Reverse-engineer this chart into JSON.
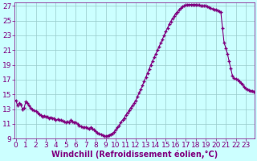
{
  "x": [
    0,
    0.17,
    0.33,
    0.5,
    0.67,
    0.83,
    1.0,
    1.17,
    1.33,
    1.5,
    1.67,
    1.83,
    2.0,
    2.17,
    2.33,
    2.5,
    2.67,
    2.83,
    3.0,
    3.17,
    3.33,
    3.5,
    3.67,
    3.83,
    4.0,
    4.17,
    4.33,
    4.5,
    4.67,
    4.83,
    5.0,
    5.17,
    5.33,
    5.5,
    5.67,
    5.83,
    6.0,
    6.17,
    6.33,
    6.5,
    6.67,
    6.83,
    7.0,
    7.17,
    7.33,
    7.5,
    7.67,
    7.83,
    8.0,
    8.17,
    8.33,
    8.5,
    8.67,
    8.83,
    9.0,
    9.17,
    9.33,
    9.5,
    9.67,
    9.83,
    10.0,
    10.17,
    10.33,
    10.5,
    10.67,
    10.83,
    11.0,
    11.17,
    11.33,
    11.5,
    11.67,
    11.83,
    12.0,
    12.17,
    12.33,
    12.5,
    12.67,
    12.83,
    13.0,
    13.17,
    13.33,
    13.5,
    13.67,
    13.83,
    14.0,
    14.17,
    14.33,
    14.5,
    14.67,
    14.83,
    15.0,
    15.17,
    15.33,
    15.5,
    15.67,
    15.83,
    16.0,
    16.17,
    16.33,
    16.5,
    16.67,
    16.83,
    17.0,
    17.17,
    17.33,
    17.5,
    17.67,
    17.83,
    18.0,
    18.17,
    18.33,
    18.5,
    18.67,
    18.83,
    19.0,
    19.17,
    19.33,
    19.5,
    19.67,
    19.83,
    20.0,
    20.17,
    20.33,
    20.5,
    20.67,
    20.83,
    21.0,
    21.17,
    21.33,
    21.5,
    21.67,
    21.83,
    22.0,
    22.17,
    22.33,
    22.5,
    22.67,
    22.83,
    23.0,
    23.17,
    23.33,
    23.5,
    23.67,
    23.83
  ],
  "y": [
    14.2,
    13.5,
    13.8,
    13.6,
    13.0,
    13.2,
    14.0,
    13.8,
    13.5,
    13.2,
    13.0,
    12.8,
    12.7,
    12.5,
    12.3,
    12.2,
    12.0,
    12.1,
    12.0,
    12.0,
    11.8,
    11.9,
    11.8,
    11.7,
    11.5,
    11.6,
    11.5,
    11.5,
    11.4,
    11.3,
    11.2,
    11.3,
    11.2,
    11.5,
    11.3,
    11.2,
    11.2,
    11.0,
    10.8,
    10.7,
    10.6,
    10.5,
    10.5,
    10.4,
    10.3,
    10.5,
    10.3,
    10.2,
    10.0,
    9.8,
    9.7,
    9.6,
    9.5,
    9.4,
    9.3,
    9.4,
    9.5,
    9.6,
    9.7,
    9.9,
    10.2,
    10.5,
    10.8,
    11.2,
    11.5,
    11.8,
    12.2,
    12.5,
    12.8,
    13.2,
    13.5,
    13.8,
    14.2,
    14.7,
    15.2,
    15.7,
    16.2,
    16.8,
    17.3,
    17.9,
    18.4,
    19.0,
    19.5,
    20.0,
    20.5,
    21.0,
    21.5,
    22.0,
    22.5,
    23.0,
    23.5,
    24.0,
    24.5,
    24.9,
    25.3,
    25.6,
    26.0,
    26.2,
    26.5,
    26.7,
    26.9,
    27.0,
    27.1,
    27.15,
    27.2,
    27.2,
    27.2,
    27.2,
    27.2,
    27.1,
    27.1,
    27.0,
    27.0,
    27.0,
    27.0,
    26.9,
    26.8,
    26.7,
    26.6,
    26.5,
    26.5,
    26.4,
    26.3,
    26.2,
    24.0,
    22.0,
    21.3,
    20.5,
    19.5,
    18.5,
    17.5,
    17.2,
    17.1,
    17.0,
    16.8,
    16.6,
    16.3,
    16.0,
    15.8,
    15.7,
    15.6,
    15.5,
    15.5,
    15.4
  ],
  "line_color": "#800080",
  "marker": "+",
  "markersize": 3,
  "linewidth": 0.8,
  "bg_color": "#ccffff",
  "grid_color": "#99cccc",
  "xlabel": "Windchill (Refroidissement éolien,°C)",
  "xlabel_color": "#800080",
  "xlabel_fontsize": 7,
  "tick_color": "#800080",
  "tick_labelsize": 6.5,
  "ylim": [
    9,
    27.5
  ],
  "xlim": [
    -0.1,
    23.9
  ],
  "yticks": [
    9,
    11,
    13,
    15,
    17,
    19,
    21,
    23,
    25,
    27
  ],
  "xticks": [
    0,
    1,
    2,
    3,
    4,
    5,
    6,
    7,
    8,
    9,
    10,
    11,
    12,
    13,
    14,
    15,
    16,
    17,
    18,
    19,
    20,
    21,
    22,
    23
  ]
}
